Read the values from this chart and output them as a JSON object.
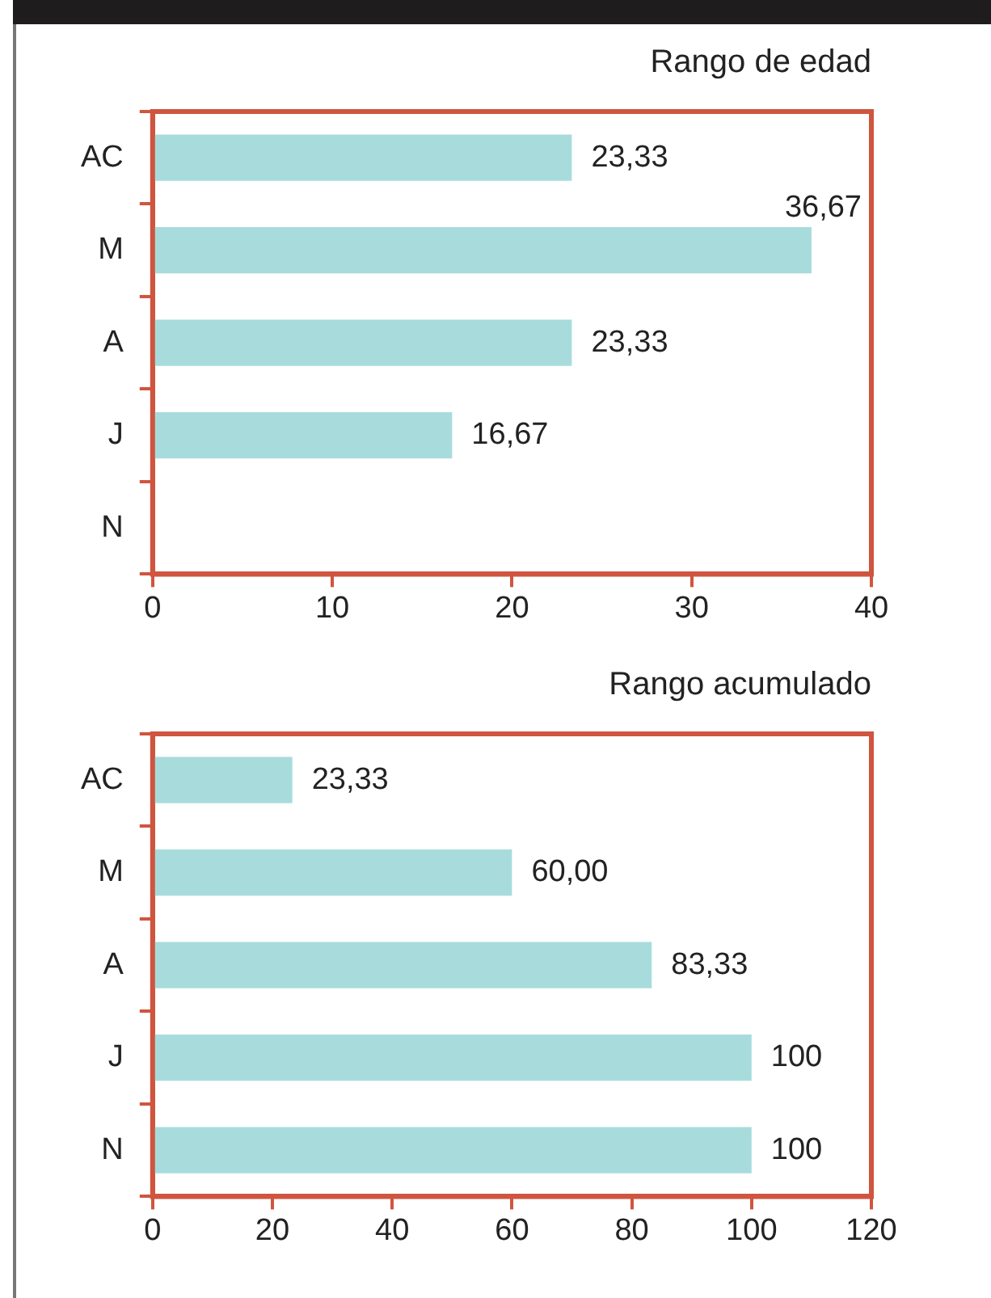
{
  "chart_data": [
    {
      "type": "bar",
      "orientation": "horizontal",
      "title": "Rango de edad",
      "categories": [
        "AC",
        "M",
        "A",
        "J",
        "N"
      ],
      "values": [
        23.33,
        36.67,
        23.33,
        16.67,
        0
      ],
      "value_labels": [
        "23,33",
        "36,67",
        "23,33",
        "16,67",
        null
      ],
      "color": "#a8dcdc",
      "xlim": [
        0,
        40
      ],
      "xticks": [
        0,
        10,
        20,
        30,
        40
      ]
    },
    {
      "type": "bar",
      "orientation": "horizontal",
      "title": "Rango acumulado",
      "categories": [
        "AC",
        "M",
        "A",
        "J",
        "N"
      ],
      "values": [
        23.33,
        60,
        83.33,
        100,
        100
      ],
      "value_labels": [
        "23,33",
        "60,00",
        "83,33",
        "100",
        "100"
      ],
      "color": "#a8dcdc",
      "xlim": [
        0,
        120
      ],
      "xticks": [
        0,
        20,
        40,
        60,
        80,
        100,
        120
      ]
    }
  ]
}
